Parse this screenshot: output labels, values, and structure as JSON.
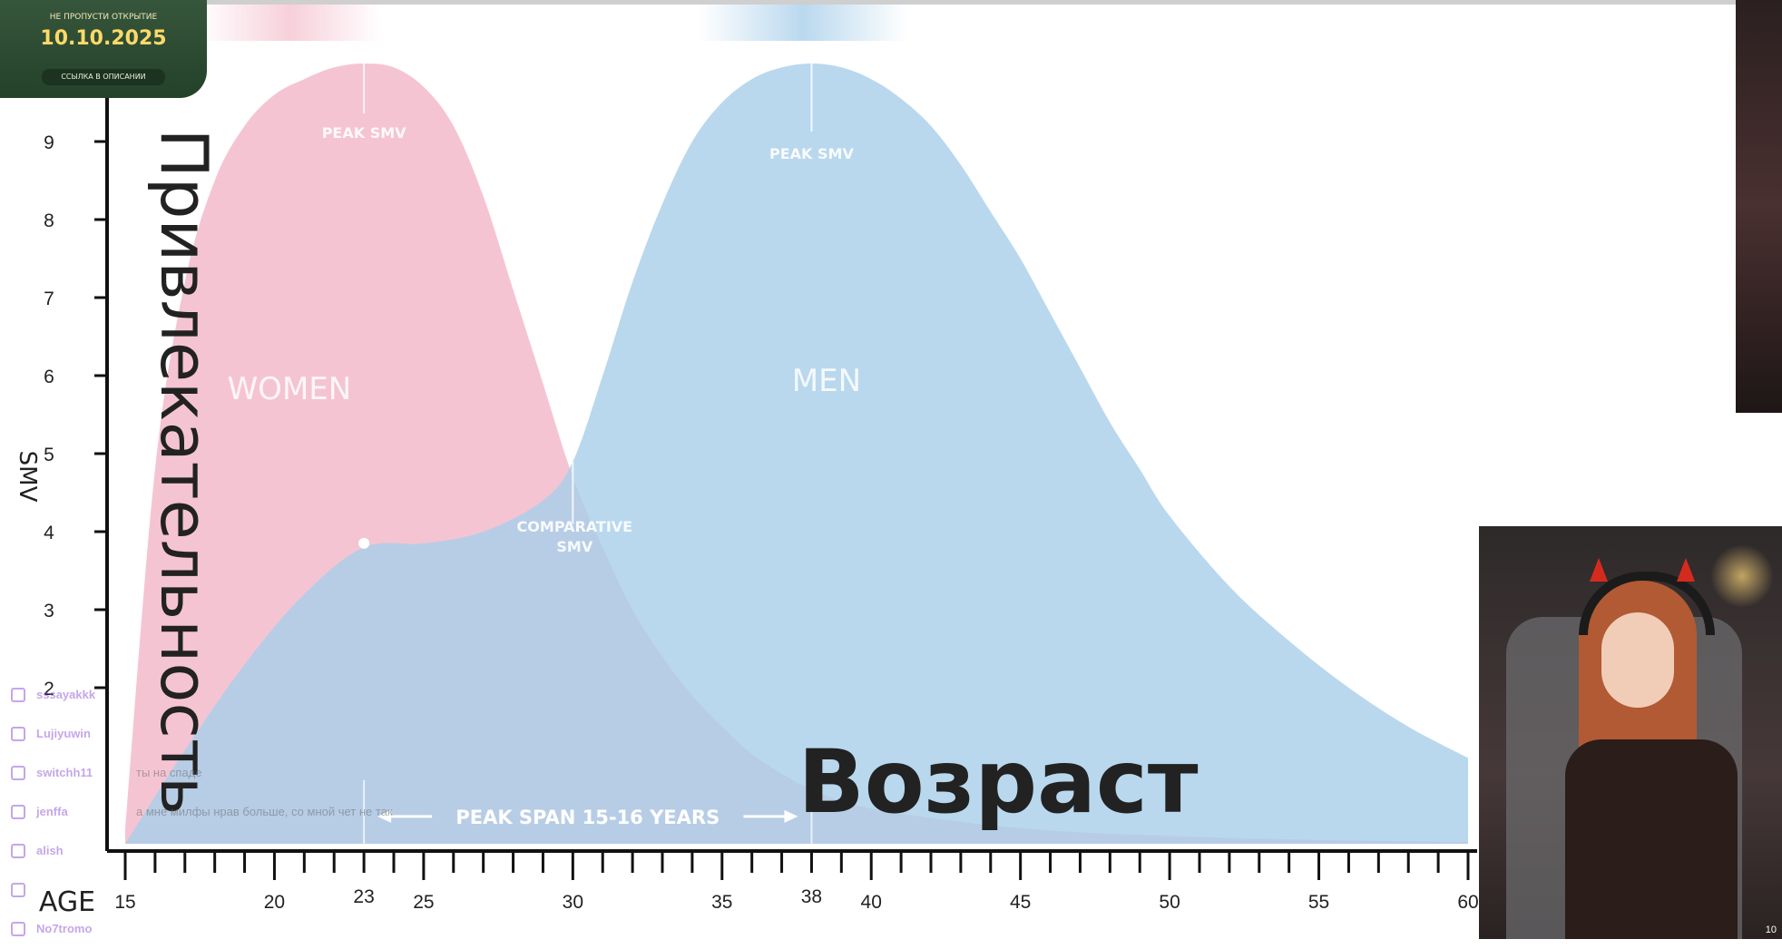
{
  "banner": {
    "top_text": "НЕ ПРОПУСТИ ОТКРЫТИЕ",
    "date": "10.10.2025",
    "link_text": "ССЫЛКА В ОПИСАНИИ"
  },
  "chart_data": {
    "type": "area",
    "xlabel": "AGE",
    "ylabel": "SMV",
    "ylabel_overlay": "Привлекательность",
    "xlabel_overlay": "Возраст",
    "xlim": [
      15,
      60
    ],
    "ylim": [
      0,
      10
    ],
    "x_ticks": [
      15,
      20,
      25,
      30,
      35,
      40,
      45,
      50,
      55,
      60
    ],
    "y_ticks": [
      2,
      3,
      4,
      5,
      6,
      7,
      8,
      9
    ],
    "series": [
      {
        "name": "WOMEN",
        "color": "#f5c4d2",
        "x": [
          15,
          16,
          17,
          18,
          19,
          20,
          21,
          22,
          23,
          24,
          25,
          26,
          27,
          28,
          29,
          30,
          31,
          32,
          33,
          34,
          35,
          36,
          37,
          38,
          40,
          45,
          50,
          55,
          60
        ],
        "y": [
          0.2,
          4.8,
          7.2,
          8.5,
          9.2,
          9.6,
          9.8,
          9.95,
          10.0,
          9.95,
          9.7,
          9.2,
          8.3,
          7.1,
          5.9,
          4.7,
          3.8,
          3.0,
          2.4,
          1.9,
          1.5,
          1.15,
          0.9,
          0.7,
          0.45,
          0.2,
          0.1,
          0.05,
          0.02
        ]
      },
      {
        "name": "MEN",
        "color": "#a9cfea",
        "x": [
          15,
          17,
          19,
          21,
          23,
          25,
          27,
          29,
          30,
          31,
          32,
          33,
          34,
          35,
          36,
          37,
          38,
          39,
          40,
          41,
          42,
          43,
          44,
          45,
          46,
          47,
          48,
          49,
          50,
          52,
          54,
          56,
          58,
          60
        ],
        "y": [
          0.0,
          1.2,
          2.3,
          3.2,
          3.8,
          3.85,
          4.0,
          4.4,
          4.9,
          6.0,
          7.2,
          8.2,
          9.0,
          9.5,
          9.8,
          9.95,
          10.0,
          9.95,
          9.8,
          9.55,
          9.2,
          8.7,
          8.1,
          7.5,
          6.8,
          6.1,
          5.4,
          4.8,
          4.2,
          3.3,
          2.6,
          2.0,
          1.5,
          1.1
        ]
      }
    ],
    "annotations": {
      "women_peak_label": "PEAK SMV",
      "men_peak_label": "PEAK SMV",
      "comparative_label_line1": "COMPARATIVE",
      "comparative_label_line2": "SMV",
      "peak_span_label": "PEAK SPAN 15-16 YEARS",
      "women_peak_x": 23,
      "women_peak_tick_label": "23",
      "men_peak_x": 38,
      "men_peak_tick_label": "38",
      "comparative_x": 30,
      "women_label": "WOMEN",
      "men_label": "MEN"
    },
    "grid": false
  },
  "chat": [
    {
      "user": "sssayakkk",
      "msg": ""
    },
    {
      "user": "Lujiyuwin",
      "msg": ""
    },
    {
      "user": "switchh11",
      "msg": "ты на спаде"
    },
    {
      "user": "jenffa",
      "msg": "а мне милфы нрав больше, со мной чет не так"
    },
    {
      "user": "alish",
      "msg": ""
    },
    {
      "user": "",
      "msg": ""
    },
    {
      "user": "No7tromo",
      "msg": ""
    }
  ],
  "corner_number": "10"
}
